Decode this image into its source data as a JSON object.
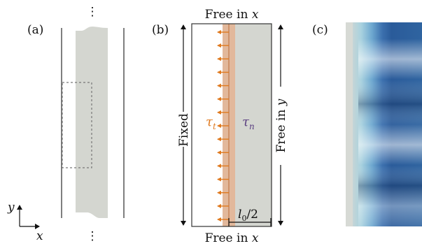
{
  "panels": {
    "a": {
      "label": "(a)",
      "axis_y": "y",
      "axis_x": "x"
    },
    "b": {
      "label": "(b)",
      "top_bc": {
        "text": "Free in ",
        "var": "x"
      },
      "bottom_bc": {
        "text": "Free in ",
        "var": "x"
      },
      "left_bc": "Fixed",
      "right_bc": {
        "text": "Free in ",
        "var": "y"
      },
      "tau_t": {
        "sym": "τ",
        "sub": "t"
      },
      "tau_n": {
        "sym": "τ",
        "sub": "n"
      },
      "width_label": {
        "sym": "l",
        "sub": "0",
        "suffix": "/2"
      },
      "shear_arrow_count": 15
    },
    "c": {
      "label": "(c)"
    }
  },
  "colors": {
    "film": "#d4d6d0",
    "shear_band": "#e2b89b",
    "shear_line": "#c8865a",
    "arrow": "#e07a1f",
    "tau_t": "#e07a1f",
    "tau_n": "#5a3f80",
    "dark_blue": "#27538f",
    "light_blue": "#9fd0e2"
  }
}
